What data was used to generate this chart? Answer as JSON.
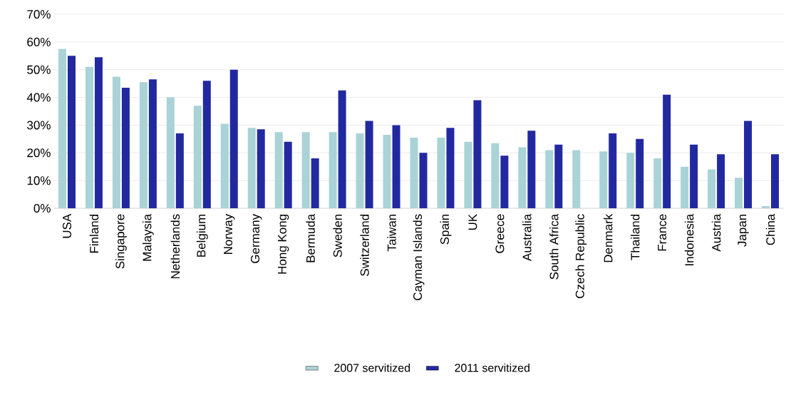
{
  "chart_data": {
    "type": "bar",
    "categories": [
      "USA",
      "Finland",
      "Singapore",
      "Malaysia",
      "Netherlands",
      "Belgium",
      "Norway",
      "Germany",
      "Hong Kong",
      "Bermuda",
      "Sweden",
      "Switzerland",
      "Taiwan",
      "Cayman Islands",
      "Spain",
      "UK",
      "Greece",
      "Australia",
      "South Africa",
      "Czech Republic",
      "Denmark",
      "Thailand",
      "France",
      "Indonesia",
      "Austria",
      "Japan",
      "China"
    ],
    "series": [
      {
        "name": "2007 servitized",
        "color": "#a9d3d6",
        "values": [
          57.5,
          51,
          47.5,
          45.5,
          40,
          37,
          30.5,
          29,
          27.5,
          27.5,
          27.5,
          27,
          26.5,
          25.5,
          25.5,
          24,
          23.5,
          22,
          21,
          21,
          20.5,
          20,
          18,
          15,
          14,
          11,
          0.8
        ]
      },
      {
        "name": "2011 servitized",
        "color": "#2229a0",
        "values": [
          55,
          54.5,
          43.5,
          46.5,
          27,
          46,
          50,
          28.5,
          24,
          18,
          42.5,
          31.5,
          30,
          20,
          29,
          39,
          19,
          28,
          23,
          null,
          27,
          25,
          41,
          23,
          19.5,
          31.5,
          19.5
        ]
      }
    ],
    "ylim": [
      0,
      70
    ],
    "yticks": [
      {
        "value": 0,
        "label": "0%"
      },
      {
        "value": 10,
        "label": "10%"
      },
      {
        "value": 20,
        "label": "20%"
      },
      {
        "value": 30,
        "label": "30%"
      },
      {
        "value": 40,
        "label": "40%"
      },
      {
        "value": 50,
        "label": "50%"
      },
      {
        "value": 60,
        "label": "60%"
      },
      {
        "value": 70,
        "label": "70%"
      }
    ],
    "grid": "y",
    "legend": "bottom"
  }
}
